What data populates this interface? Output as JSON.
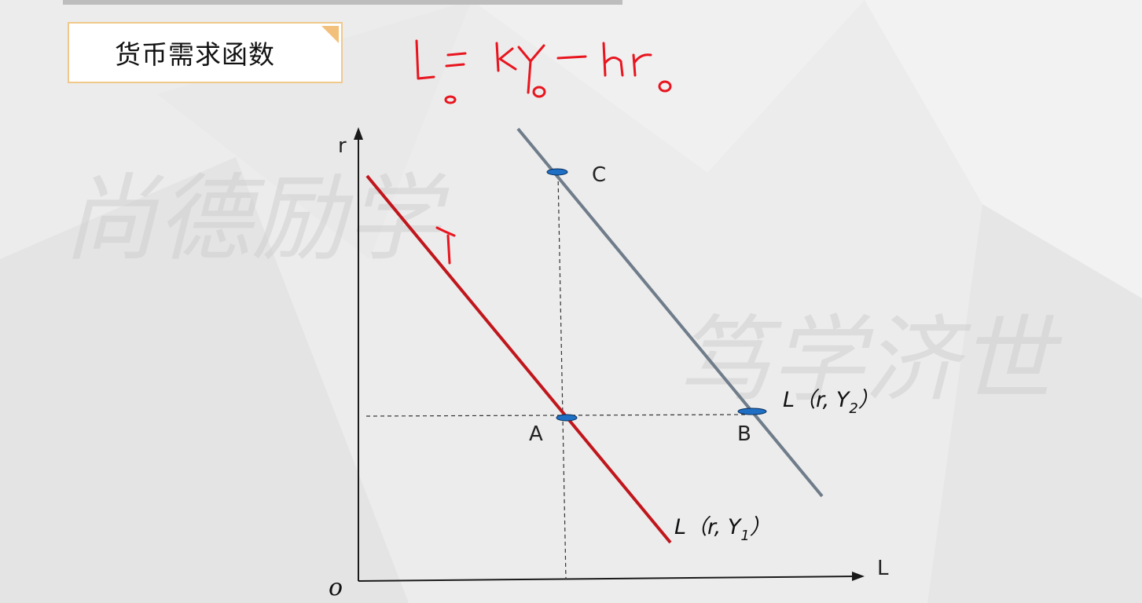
{
  "slide": {
    "title": "货币需求函数",
    "handwritten_formula": "L= kY₀ − hr₀",
    "watermark_line1": "尚德励学",
    "watermark_line2": "笃学济世"
  },
  "diagram": {
    "y_axis_label": "r",
    "x_axis_label": "L",
    "origin_label": "o",
    "points": {
      "A": "A",
      "B": "B",
      "C": "C"
    },
    "curve_red": {
      "prefix": "L（r, Y",
      "sub": "1",
      "suffix": "）"
    },
    "curve_gray": {
      "prefix": "L（r, Y",
      "sub": "2",
      "suffix": "）"
    },
    "colors": {
      "red_curve": "#c0161c",
      "gray_curve": "#6f7c8a",
      "marker": "#1f6fc4",
      "handwriting": "#e8151f"
    }
  }
}
